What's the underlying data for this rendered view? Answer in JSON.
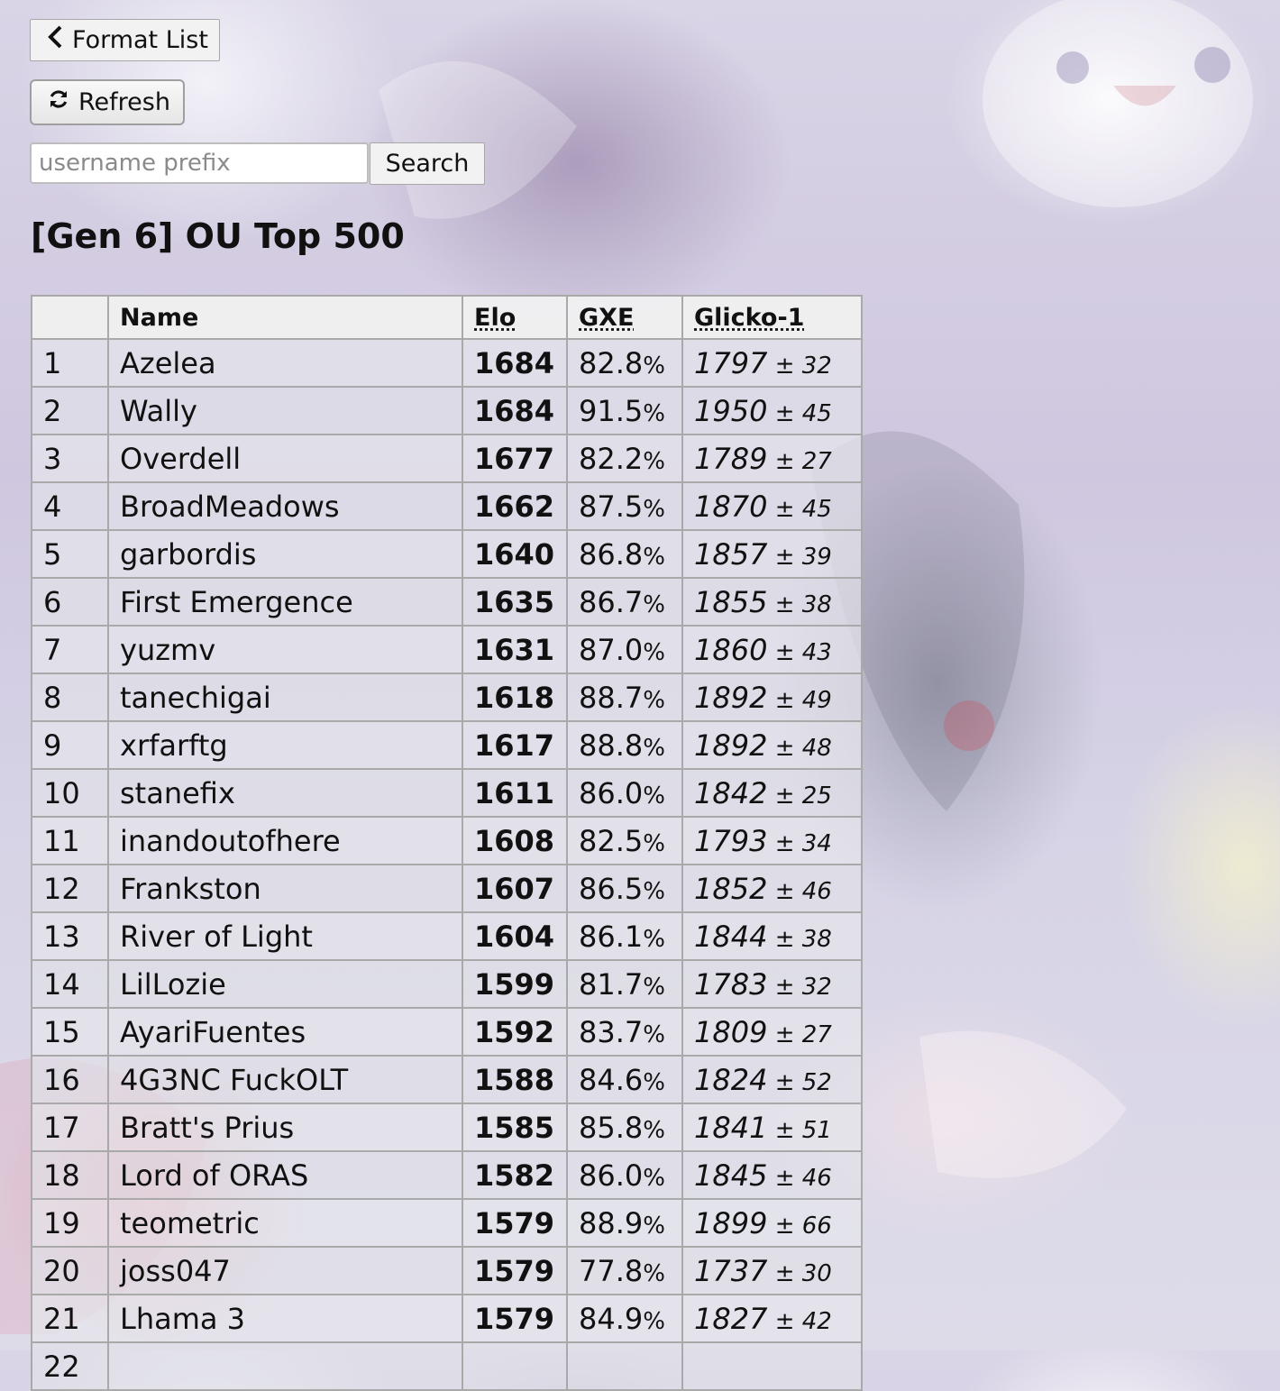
{
  "nav": {
    "format_list_label": "Format List",
    "refresh_label": "Refresh"
  },
  "search": {
    "placeholder": "username prefix",
    "button_label": "Search"
  },
  "title": "[Gen 6] OU Top 500",
  "table": {
    "headers": {
      "rank": "",
      "name": "Name",
      "elo": "Elo",
      "gxe": "GXE",
      "glicko": "Glicko-1"
    },
    "rows": [
      {
        "rank": "1",
        "name": "Azelea",
        "elo": "1684",
        "gxe": "82.8",
        "glicko": "1797",
        "dev": "32"
      },
      {
        "rank": "2",
        "name": "Wally",
        "elo": "1684",
        "gxe": "91.5",
        "glicko": "1950",
        "dev": "45"
      },
      {
        "rank": "3",
        "name": "Overdell",
        "elo": "1677",
        "gxe": "82.2",
        "glicko": "1789",
        "dev": "27"
      },
      {
        "rank": "4",
        "name": "BroadMeadows",
        "elo": "1662",
        "gxe": "87.5",
        "glicko": "1870",
        "dev": "45"
      },
      {
        "rank": "5",
        "name": "garbordis",
        "elo": "1640",
        "gxe": "86.8",
        "glicko": "1857",
        "dev": "39"
      },
      {
        "rank": "6",
        "name": "First Emergence",
        "elo": "1635",
        "gxe": "86.7",
        "glicko": "1855",
        "dev": "38"
      },
      {
        "rank": "7",
        "name": "yuzmv",
        "elo": "1631",
        "gxe": "87.0",
        "glicko": "1860",
        "dev": "43"
      },
      {
        "rank": "8",
        "name": "tanechigai",
        "elo": "1618",
        "gxe": "88.7",
        "glicko": "1892",
        "dev": "49"
      },
      {
        "rank": "9",
        "name": "xrfarftg",
        "elo": "1617",
        "gxe": "88.8",
        "glicko": "1892",
        "dev": "48"
      },
      {
        "rank": "10",
        "name": "stanefix",
        "elo": "1611",
        "gxe": "86.0",
        "glicko": "1842",
        "dev": "25"
      },
      {
        "rank": "11",
        "name": "inandoutofhere",
        "elo": "1608",
        "gxe": "82.5",
        "glicko": "1793",
        "dev": "34"
      },
      {
        "rank": "12",
        "name": "Frankston",
        "elo": "1607",
        "gxe": "86.5",
        "glicko": "1852",
        "dev": "46"
      },
      {
        "rank": "13",
        "name": "River of Light",
        "elo": "1604",
        "gxe": "86.1",
        "glicko": "1844",
        "dev": "38"
      },
      {
        "rank": "14",
        "name": "LilLozie",
        "elo": "1599",
        "gxe": "81.7",
        "glicko": "1783",
        "dev": "32"
      },
      {
        "rank": "15",
        "name": "AyariFuentes",
        "elo": "1592",
        "gxe": "83.7",
        "glicko": "1809",
        "dev": "27"
      },
      {
        "rank": "16",
        "name": "4G3NC FuckOLT",
        "elo": "1588",
        "gxe": "84.6",
        "glicko": "1824",
        "dev": "52"
      },
      {
        "rank": "17",
        "name": "Bratt's Prius",
        "elo": "1585",
        "gxe": "85.8",
        "glicko": "1841",
        "dev": "51"
      },
      {
        "rank": "18",
        "name": "Lord of ORAS",
        "elo": "1582",
        "gxe": "86.0",
        "glicko": "1845",
        "dev": "46"
      },
      {
        "rank": "19",
        "name": "teometric",
        "elo": "1579",
        "gxe": "88.9",
        "glicko": "1899",
        "dev": "66"
      },
      {
        "rank": "20",
        "name": "joss047",
        "elo": "1579",
        "gxe": "77.8",
        "glicko": "1737",
        "dev": "30"
      },
      {
        "rank": "21",
        "name": "Lhama 3",
        "elo": "1579",
        "gxe": "84.9",
        "glicko": "1827",
        "dev": "42"
      },
      {
        "rank": "22",
        "name": "",
        "elo": "",
        "gxe": "",
        "glicko": "",
        "dev": ""
      }
    ]
  },
  "icons": {
    "back": "chevron-left-icon",
    "refresh": "refresh-icon"
  }
}
